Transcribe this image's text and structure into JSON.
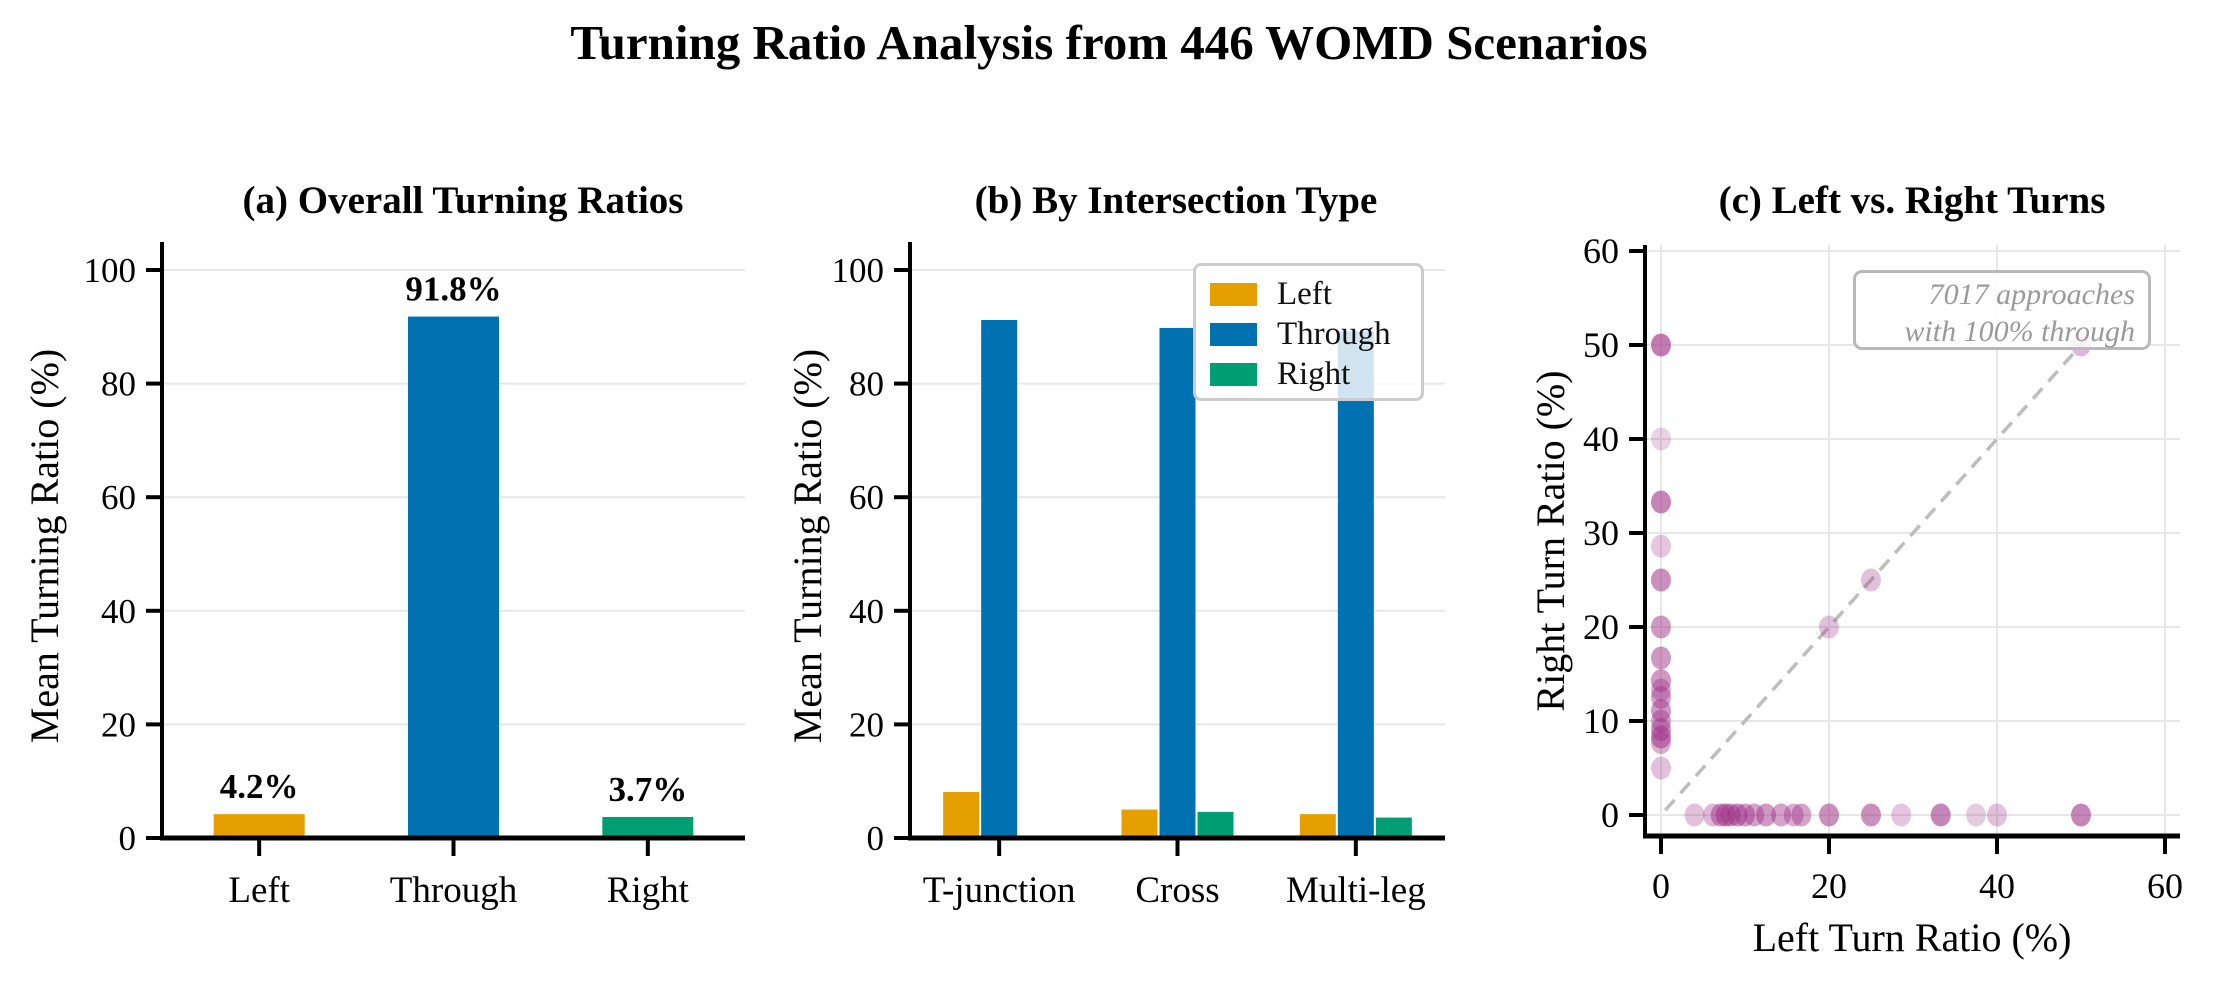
{
  "figure": {
    "title": "Turning Ratio Analysis from 446 WOMD Scenarios",
    "colors": {
      "left": "#E69F00",
      "through": "#0072B2",
      "right": "#009E73",
      "scatter_base": "#A03389",
      "grid": "#E7E7E7",
      "spine": "#000000",
      "dashed_line": "#BDBDBD",
      "annotation_text": "#9A9A9A",
      "legend_border": "#CCCCCC"
    }
  },
  "chart_data": [
    {
      "id": "overall",
      "type": "bar",
      "title": "(a) Overall Turning Ratios",
      "ylabel": "Mean Turning Ratio (%)",
      "categories": [
        "Left",
        "Through",
        "Right"
      ],
      "values": [
        4.2,
        91.8,
        3.7
      ],
      "bar_labels": [
        "4.2%",
        "91.8%",
        "3.7%"
      ],
      "bar_colors": [
        "#E69F00",
        "#0072B2",
        "#009E73"
      ],
      "ylim": [
        0,
        105
      ],
      "yticks": [
        0,
        20,
        40,
        60,
        80,
        100
      ],
      "grid": true
    },
    {
      "id": "by-intersection-type",
      "type": "bar",
      "title": "(b) By Intersection Type",
      "ylabel": "Mean Turning Ratio (%)",
      "categories": [
        "T-junction",
        "Cross",
        "Multi-leg"
      ],
      "series": [
        {
          "name": "Left",
          "color": "#E69F00",
          "values": [
            8.1,
            5.0,
            4.2
          ]
        },
        {
          "name": "Through",
          "color": "#0072B2",
          "values": [
            91.2,
            89.8,
            89.2
          ]
        },
        {
          "name": "Right",
          "color": "#009E73",
          "values": [
            0.2,
            4.6,
            3.6
          ]
        }
      ],
      "ylim": [
        0,
        105
      ],
      "yticks": [
        0,
        20,
        40,
        60,
        80,
        100
      ],
      "legend": {
        "position": "upper right",
        "items": [
          "Left",
          "Through",
          "Right"
        ]
      },
      "grid": true
    },
    {
      "id": "left-vs-right",
      "type": "scatter",
      "title": "(c) Left vs. Right Turns",
      "xlabel": "Left Turn Ratio (%)",
      "ylabel": "Right Turn Ratio (%)",
      "xlim": [
        -2,
        62
      ],
      "ylim": [
        -2,
        61
      ],
      "xticks": [
        0,
        20,
        40,
        60
      ],
      "yticks": [
        0,
        10,
        20,
        30,
        40,
        50,
        60
      ],
      "grid": true,
      "identity_line": {
        "from": [
          0.5,
          0.5
        ],
        "to": [
          51,
          51
        ],
        "style": "dashed"
      },
      "annotation": {
        "lines": [
          "7017 approaches",
          "with 100% through"
        ]
      },
      "points": [
        {
          "x": 0,
          "y": 50,
          "a": 0.65
        },
        {
          "x": 0,
          "y": 40,
          "a": 0.22
        },
        {
          "x": 0,
          "y": 33.3,
          "a": 0.6
        },
        {
          "x": 0,
          "y": 28.6,
          "a": 0.28
        },
        {
          "x": 0,
          "y": 25,
          "a": 0.55
        },
        {
          "x": 0,
          "y": 20,
          "a": 0.5
        },
        {
          "x": 0,
          "y": 16.7,
          "a": 0.5
        },
        {
          "x": 0,
          "y": 14.3,
          "a": 0.5
        },
        {
          "x": 0,
          "y": 13.3,
          "a": 0.4
        },
        {
          "x": 0,
          "y": 12.5,
          "a": 0.45
        },
        {
          "x": 0,
          "y": 11.1,
          "a": 0.5
        },
        {
          "x": 0,
          "y": 10,
          "a": 0.45
        },
        {
          "x": 0,
          "y": 9.1,
          "a": 0.5
        },
        {
          "x": 0,
          "y": 8.3,
          "a": 0.55
        },
        {
          "x": 0,
          "y": 7.7,
          "a": 0.4
        },
        {
          "x": 0,
          "y": 5,
          "a": 0.3
        },
        {
          "x": 4,
          "y": 0,
          "a": 0.3
        },
        {
          "x": 6.2,
          "y": 0,
          "a": 0.35
        },
        {
          "x": 7.1,
          "y": 0,
          "a": 0.5
        },
        {
          "x": 7.7,
          "y": 0,
          "a": 0.55
        },
        {
          "x": 8.3,
          "y": 0,
          "a": 0.5
        },
        {
          "x": 9.1,
          "y": 0,
          "a": 0.55
        },
        {
          "x": 10,
          "y": 0,
          "a": 0.5
        },
        {
          "x": 11.1,
          "y": 0,
          "a": 0.45
        },
        {
          "x": 12.5,
          "y": 0,
          "a": 0.5
        },
        {
          "x": 14.3,
          "y": 0,
          "a": 0.45
        },
        {
          "x": 15.8,
          "y": 0,
          "a": 0.4
        },
        {
          "x": 16.7,
          "y": 0,
          "a": 0.45
        },
        {
          "x": 20,
          "y": 0,
          "a": 0.55
        },
        {
          "x": 25,
          "y": 0,
          "a": 0.55
        },
        {
          "x": 28.6,
          "y": 0,
          "a": 0.28
        },
        {
          "x": 33.3,
          "y": 0,
          "a": 0.6
        },
        {
          "x": 37.5,
          "y": 0,
          "a": 0.25
        },
        {
          "x": 40,
          "y": 0,
          "a": 0.3
        },
        {
          "x": 50,
          "y": 0,
          "a": 0.6
        },
        {
          "x": 20,
          "y": 20,
          "a": 0.3
        },
        {
          "x": 25,
          "y": 25,
          "a": 0.3
        },
        {
          "x": 50,
          "y": 50,
          "a": 0.35
        }
      ]
    }
  ]
}
